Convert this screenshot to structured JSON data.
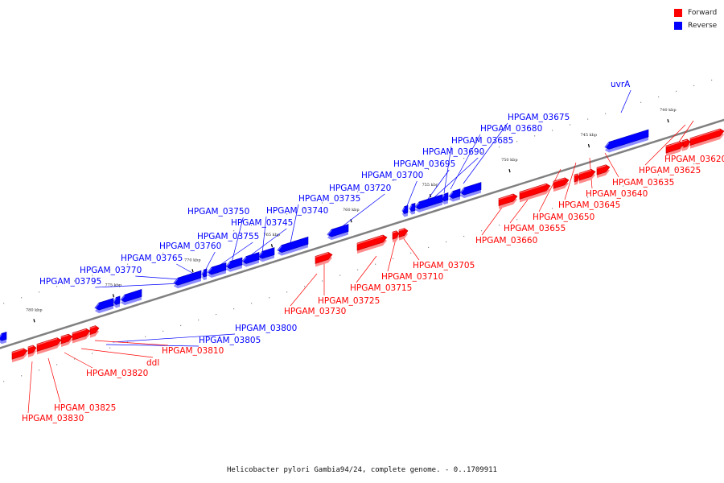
{
  "legend": [
    {
      "label": "Forward",
      "color": "#ff0000"
    },
    {
      "label": "Reverse",
      "color": "#0000ff"
    }
  ],
  "footer": "Helicobacter pylori Gambia94/24, complete genome. - 0..1709911",
  "colors": {
    "forward": "#ff0000",
    "reverse": "#0000ff",
    "backbone": "#808080",
    "tick": "#000000"
  },
  "ticks": [
    "740 kbp",
    "745 kbp",
    "750 kbp",
    "755 kbp",
    "760 kbp",
    "765 kbp",
    "770 kbp",
    "775 kbp",
    "780 kbp"
  ],
  "genes_reverse": [
    "uvrA",
    "HPGAM_03675",
    "HPGAM_03680",
    "HPGAM_03685",
    "HPGAM_03690",
    "HPGAM_03695",
    "HPGAM_03700",
    "HPGAM_03720",
    "HPGAM_03735",
    "HPGAM_03740",
    "HPGAM_03745",
    "HPGAM_03750",
    "HPGAM_03755",
    "HPGAM_03760",
    "HPGAM_03765",
    "HPGAM_03770",
    "HPGAM_03795",
    "HPGAM_03800",
    "HPGAM_03805"
  ],
  "genes_forward": [
    "HPGAM_03620",
    "HPGAM_03625",
    "HPGAM_03635",
    "HPGAM_03640",
    "HPGAM_03645",
    "HPGAM_03650",
    "HPGAM_03655",
    "HPGAM_03660",
    "HPGAM_03705",
    "HPGAM_03710",
    "HPGAM_03715",
    "HPGAM_03725",
    "HPGAM_03730",
    "HPGAM_03810",
    "ddl",
    "HPGAM_03820",
    "HPGAM_03825",
    "HPGAM_03830"
  ]
}
